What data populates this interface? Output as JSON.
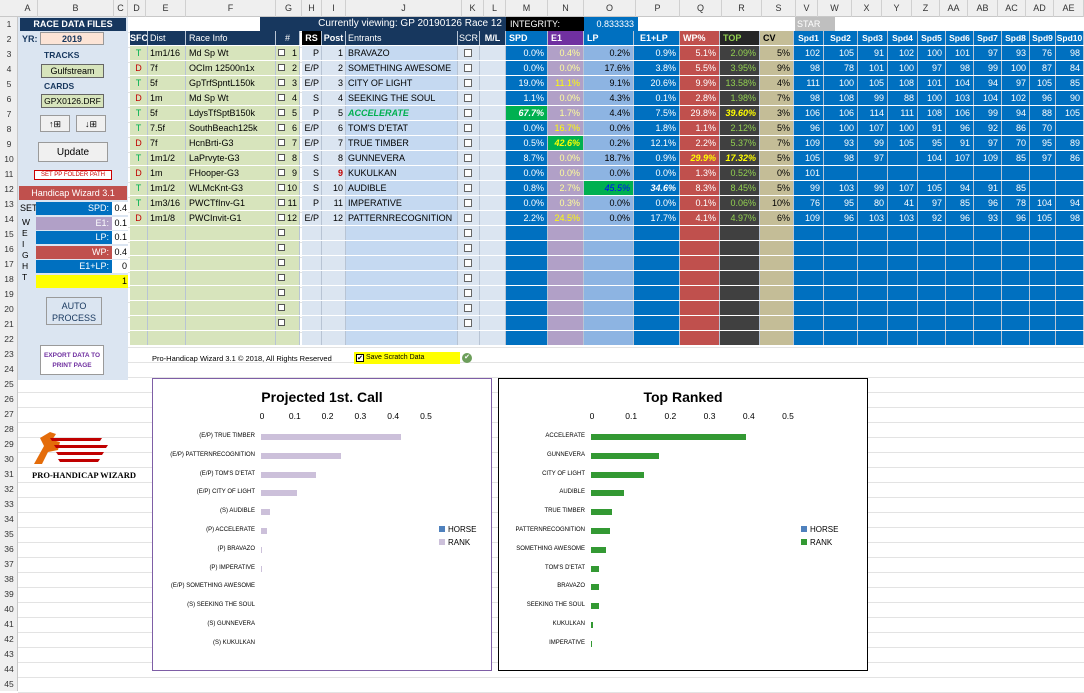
{
  "columns": [
    "A",
    "B",
    "C",
    "D",
    "E",
    "F",
    "G",
    "H",
    "I",
    "J",
    "K",
    "L",
    "M",
    "N",
    "O",
    "P",
    "Q",
    "R",
    "S",
    "V",
    "W",
    "X",
    "Y",
    "Z",
    "AA",
    "AB",
    "AC",
    "AD",
    "AE"
  ],
  "rows": [
    "1",
    "2",
    "3",
    "4",
    "5",
    "6",
    "7",
    "8",
    "9",
    "10",
    "11",
    "12",
    "13",
    "14",
    "15",
    "16",
    "17",
    "18",
    "19",
    "20",
    "21",
    "22",
    "23",
    "24",
    "25",
    "26",
    "27",
    "28",
    "29",
    "30",
    "31",
    "32",
    "33",
    "34",
    "35",
    "36",
    "37",
    "38",
    "39",
    "40",
    "41",
    "42",
    "43",
    "44",
    "45"
  ],
  "panel": {
    "title": "RACE DATA FILES",
    "yr_label": "YR:",
    "yr_value": "2019",
    "tracks_label": "TRACKS",
    "track_value": "Gulfstream",
    "cards_label": "CARDS",
    "card_value": "GPX0126.DRF",
    "up_btn": "↑⊞",
    "down_btn": "↓⊞",
    "update_btn": "Update",
    "set_pp_btn": "SET PP FOLDER PATH",
    "hw_title": "Handicap Wizard 3.1",
    "set_label": "SET",
    "weight_letters": [
      "W",
      "E",
      "I",
      "G",
      "H",
      "T"
    ],
    "weights": [
      {
        "label": "SPD:",
        "value": "0.4"
      },
      {
        "label": "E1:",
        "value": "0.1"
      },
      {
        "label": "LP:",
        "value": "0.1"
      },
      {
        "label": "WP:",
        "value": "0.4"
      },
      {
        "label": "E1+LP:",
        "value": "0"
      },
      {
        "label": "",
        "value": "1"
      }
    ],
    "auto_btn": "AUTO PROCESS",
    "export_btn": "EXPORT DATA TO PRINT PAGE"
  },
  "viewing": "Currently viewing: GP 20190126 Race 12",
  "integrity_label": "INTEGRITY:",
  "integrity_value": "0.833333",
  "start_label": "STAR",
  "headers": {
    "sfc": "SFC",
    "dist": "Dist",
    "race": "Race Info",
    "num": "#",
    "rs": "RS",
    "post": "Post",
    "entrants": "Entrants",
    "scr": "SCR",
    "ml": "M/L",
    "spd": "SPD",
    "e1": "E1",
    "lp": "LP",
    "e1lp": "E1+LP",
    "wp": "WP%",
    "top": "TOP",
    "cv": "CV",
    "spds": [
      "Spd1",
      "Spd2",
      "Spd3",
      "Spd4",
      "Spd5",
      "Spd6",
      "Spd7",
      "Spd8",
      "Spd9",
      "Spd10"
    ]
  },
  "entries": [
    {
      "sfc": "T",
      "dist": "1m1/16",
      "race": "Md Sp Wt",
      "num": "1",
      "rs": "P",
      "post": "1",
      "name": "BRAVAZO",
      "spd": "0.0%",
      "e1": "0.4%",
      "lp": "0.2%",
      "e1lp": "0.9%",
      "wp": "5.1%",
      "top": "2.09%",
      "cv": "5%",
      "s": [
        "102",
        "105",
        "91",
        "102",
        "100",
        "101",
        "97",
        "93",
        "76",
        "98"
      ]
    },
    {
      "sfc": "D",
      "dist": "7f",
      "race": "OCIm 12500n1x",
      "num": "2",
      "rs": "E/P",
      "post": "2",
      "name": "SOMETHING AWESOME",
      "spd": "0.0%",
      "e1": "0.0%",
      "lp": "17.6%",
      "e1lp": "3.8%",
      "wp": "5.5%",
      "top": "3.95%",
      "cv": "9%",
      "s": [
        "98",
        "78",
        "101",
        "100",
        "97",
        "98",
        "99",
        "100",
        "87",
        "84"
      ]
    },
    {
      "sfc": "T",
      "dist": "5f",
      "race": "GpTrfSpntL150k",
      "num": "3",
      "rs": "E/P",
      "post": "3",
      "name": "CITY OF LIGHT",
      "spd": "19.0%",
      "e1": "11.1%",
      "lp": "9.1%",
      "e1lp": "20.6%",
      "wp": "9.9%",
      "top": "13.58%",
      "cv": "4%",
      "s": [
        "111",
        "100",
        "105",
        "108",
        "101",
        "104",
        "94",
        "97",
        "105",
        "85"
      ]
    },
    {
      "sfc": "D",
      "dist": "1m",
      "race": "Md Sp Wt",
      "num": "4",
      "rs": "S",
      "post": "4",
      "name": "SEEKING THE SOUL",
      "spd": "1.1%",
      "e1": "0.0%",
      "lp": "4.3%",
      "e1lp": "0.1%",
      "wp": "2.8%",
      "top": "1.98%",
      "cv": "7%",
      "s": [
        "98",
        "108",
        "99",
        "88",
        "100",
        "103",
        "104",
        "102",
        "96",
        "90"
      ]
    },
    {
      "sfc": "T",
      "dist": "5f",
      "race": "LdysTfSptB150k",
      "num": "5",
      "rs": "P",
      "post": "5",
      "name": "ACCELERATE",
      "spd": "67.7%",
      "e1": "1.7%",
      "lp": "4.4%",
      "e1lp": "7.5%",
      "wp": "29.8%",
      "top": "39.60%",
      "cv": "3%",
      "s": [
        "106",
        "106",
        "114",
        "111",
        "108",
        "106",
        "99",
        "94",
        "88",
        "105"
      ]
    },
    {
      "sfc": "T",
      "dist": "7.5f",
      "race": "SouthBeach125k",
      "num": "6",
      "rs": "E/P",
      "post": "6",
      "name": "TOM'S D'ETAT",
      "spd": "0.0%",
      "e1": "16.7%",
      "lp": "0.0%",
      "e1lp": "1.8%",
      "wp": "1.1%",
      "top": "2.12%",
      "cv": "5%",
      "s": [
        "96",
        "100",
        "107",
        "100",
        "91",
        "96",
        "92",
        "86",
        "70",
        ""
      ]
    },
    {
      "sfc": "D",
      "dist": "7f",
      "race": "HcnBrti-G3",
      "num": "7",
      "rs": "E/P",
      "post": "7",
      "name": "TRUE TIMBER",
      "spd": "0.5%",
      "e1": "42.6%",
      "lp": "0.2%",
      "e1lp": "12.1%",
      "wp": "2.2%",
      "top": "5.37%",
      "cv": "7%",
      "s": [
        "109",
        "93",
        "99",
        "105",
        "95",
        "91",
        "97",
        "70",
        "95",
        "89"
      ]
    },
    {
      "sfc": "T",
      "dist": "1m1/2",
      "race": "LaPrvyte-G3",
      "num": "8",
      "rs": "S",
      "post": "8",
      "name": "GUNNEVERA",
      "spd": "8.7%",
      "e1": "0.0%",
      "lp": "18.7%",
      "e1lp": "0.9%",
      "wp": "29.9%",
      "top": "17.32%",
      "cv": "5%",
      "s": [
        "105",
        "98",
        "97",
        "",
        "104",
        "107",
        "109",
        "85",
        "97",
        "86"
      ]
    },
    {
      "sfc": "D",
      "dist": "1m",
      "race": "FHooper-G3",
      "num": "9",
      "rs": "S",
      "post": "9",
      "name": "KUKULKAN",
      "spd": "0.0%",
      "e1": "0.0%",
      "lp": "0.0%",
      "e1lp": "0.0%",
      "wp": "1.3%",
      "top": "0.52%",
      "cv": "0%",
      "s": [
        "101",
        "",
        "",
        "",
        "",
        "",
        "",
        "",
        "",
        ""
      ]
    },
    {
      "sfc": "T",
      "dist": "1m1/2",
      "race": "WLMcKnt-G3",
      "num": "10",
      "rs": "S",
      "post": "10",
      "name": "AUDIBLE",
      "spd": "0.8%",
      "e1": "2.7%",
      "lp": "45.5%",
      "e1lp": "34.6%",
      "wp": "8.3%",
      "top": "8.45%",
      "cv": "5%",
      "s": [
        "99",
        "103",
        "99",
        "107",
        "105",
        "94",
        "91",
        "85",
        "",
        ""
      ]
    },
    {
      "sfc": "T",
      "dist": "1m3/16",
      "race": "PWCTfInv-G1",
      "num": "11",
      "rs": "P",
      "post": "11",
      "name": "IMPERATIVE",
      "spd": "0.0%",
      "e1": "0.3%",
      "lp": "0.0%",
      "e1lp": "0.0%",
      "wp": "0.1%",
      "top": "0.06%",
      "cv": "10%",
      "s": [
        "76",
        "95",
        "80",
        "41",
        "97",
        "85",
        "96",
        "78",
        "104",
        "94"
      ]
    },
    {
      "sfc": "D",
      "dist": "1m1/8",
      "race": "PWCInvit-G1",
      "num": "12",
      "rs": "E/P",
      "post": "12",
      "name": "PATTERNRECOGNITION",
      "spd": "2.2%",
      "e1": "24.5%",
      "lp": "0.0%",
      "e1lp": "17.7%",
      "wp": "4.1%",
      "top": "4.97%",
      "cv": "6%",
      "s": [
        "109",
        "96",
        "103",
        "103",
        "92",
        "96",
        "93",
        "96",
        "105",
        "98"
      ]
    }
  ],
  "footer": "Pro-Handicap Wizard 3.1 © 2018, All Rights Reserved",
  "save_scratch": "Save Scratch Data",
  "logo_text": "PRO-HANDICAP WIZARD",
  "colors": {
    "panel": "#dbe5f1",
    "green": "#d7e4bc",
    "blue_stats": "#0070c0",
    "lavender": "#b1a0c7",
    "red": "#c0504d",
    "dark": "#404040",
    "tan": "#c4bd97",
    "spd_blue": "#0070c0"
  },
  "chart_data": [
    {
      "type": "bar",
      "title": "Projected 1st. Call",
      "orientation": "horizontal",
      "categories": [
        "(E/P) TRUE TIMBER",
        "(E/P) PATTERNRECOGNITION",
        "(E/P) TOM'S D'ETAT",
        "(E/P) CITY OF LIGHT",
        "(S) AUDIBLE",
        "(P) ACCELERATE",
        "(P) BRAVAZO",
        "(P) IMPERATIVE",
        "(E/P) SOMETHING AWESOME",
        "(S) SEEKING THE SOUL",
        "(S) GUNNEVERA",
        "(S) KUKULKAN"
      ],
      "series": [
        {
          "name": "HORSE",
          "values": [
            0,
            0,
            0,
            0,
            0,
            0,
            0,
            0,
            0,
            0,
            0,
            0
          ]
        },
        {
          "name": "RANK",
          "values": [
            0.426,
            0.245,
            0.167,
            0.111,
            0.027,
            0.017,
            0.004,
            0.003,
            0,
            0,
            0,
            0
          ]
        }
      ],
      "xticks": [
        "0",
        "0.1",
        "0.2",
        "0.3",
        "0.4",
        "0.5"
      ],
      "xlim": [
        0,
        0.5
      ],
      "legend": "right",
      "color": "#ccc0da"
    },
    {
      "type": "bar",
      "title": "Top Ranked",
      "orientation": "horizontal",
      "categories": [
        "ACCELERATE",
        "GUNNEVERA",
        "CITY OF LIGHT",
        "AUDIBLE",
        "TRUE TIMBER",
        "PATTERNRECOGNITION",
        "SOMETHING AWESOME",
        "TOM'S D'ETAT",
        "BRAVAZO",
        "SEEKING THE SOUL",
        "KUKULKAN",
        "IMPERATIVE"
      ],
      "series": [
        {
          "name": "HORSE",
          "values": [
            0,
            0,
            0,
            0,
            0,
            0,
            0,
            0,
            0,
            0,
            0,
            0
          ]
        },
        {
          "name": "RANK",
          "values": [
            0.396,
            0.1732,
            0.1358,
            0.0845,
            0.0537,
            0.0497,
            0.0395,
            0.0212,
            0.0209,
            0.0198,
            0.0052,
            0.0006
          ]
        }
      ],
      "xticks": [
        "0",
        "0.1",
        "0.2",
        "0.3",
        "0.4",
        "0.5"
      ],
      "xlim": [
        0,
        0.5
      ],
      "legend": "right",
      "color": "#339933"
    }
  ]
}
